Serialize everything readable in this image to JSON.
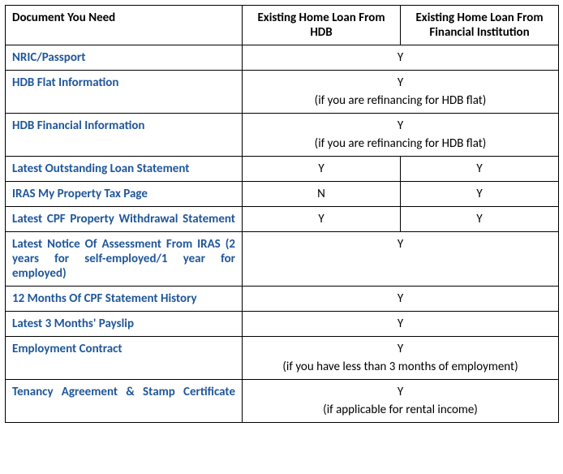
{
  "headers": {
    "col1": "Document You Need",
    "col2": "Existing Home Loan From HDB",
    "col3": "Existing Home Loan From Financial Institution"
  },
  "rows": [
    {
      "doc": "NRIC/Passport",
      "merged": true,
      "val": "Y",
      "note": null,
      "justified": false
    },
    {
      "doc": "HDB Flat Information",
      "merged": true,
      "val": "Y",
      "note": "(if you are refinancing for HDB flat)",
      "justified": false
    },
    {
      "doc": "HDB Financial Information",
      "merged": true,
      "val": "Y",
      "note": "(if you are refinancing for HDB flat)",
      "justified": false
    },
    {
      "doc": "Latest Outstanding Loan Statement",
      "merged": false,
      "val1": "Y",
      "val2": "Y",
      "justified": false
    },
    {
      "doc": "IRAS My Property Tax Page",
      "merged": false,
      "val1": "N",
      "val2": "Y",
      "justified": false
    },
    {
      "doc": "Latest CPF Property Withdrawal Statement",
      "merged": false,
      "val1": "Y",
      "val2": "Y",
      "justified": true
    },
    {
      "doc": "Latest Notice Of Assessment From IRAS (2 years for self-employed/1 year for employed)",
      "merged": true,
      "val": "Y",
      "note": null,
      "justified": true
    },
    {
      "doc": "12 Months Of CPF Statement History",
      "merged": true,
      "val": "Y",
      "note": null,
      "justified": false
    },
    {
      "doc": "Latest 3 Months' Payslip",
      "merged": true,
      "val": "Y",
      "note": null,
      "justified": false
    },
    {
      "doc": "Employment Contract",
      "merged": true,
      "val": "Y",
      "note": "(if you have less than 3 months of employment)",
      "justified": false
    },
    {
      "doc": "Tenancy Agreement & Stamp Certificate",
      "merged": true,
      "val": "Y",
      "note": "(if applicable for rental income)",
      "justified": true
    }
  ]
}
